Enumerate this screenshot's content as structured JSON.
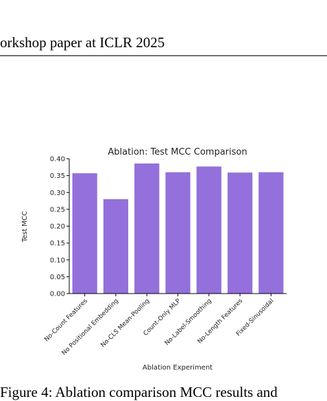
{
  "page": {
    "header": "orkshop paper at ICLR 2025",
    "caption": "Figure 4: Ablation comparison MCC results and"
  },
  "colors": {
    "bar": "#9370DB",
    "axis": "#000000",
    "text": "#222222"
  },
  "chart_data": {
    "type": "bar",
    "title": "Ablation: Test MCC Comparison",
    "xlabel": "Ablation Experiment",
    "ylabel": "Test MCC",
    "categories": [
      "No-Count Features",
      "No Positional Embedding",
      "No-CLS Mean-Pooling",
      "Count-Only MLP",
      "No-Label-Smoothing",
      "No-Length Features",
      "Fixed-Sinusoidal"
    ],
    "values": [
      0.357,
      0.28,
      0.386,
      0.36,
      0.377,
      0.359,
      0.36
    ],
    "yticks": [
      "0.00",
      "0.05",
      "0.10",
      "0.15",
      "0.20",
      "0.25",
      "0.30",
      "0.35",
      "0.40"
    ],
    "ylim": [
      0,
      0.4
    ],
    "grid": false,
    "legend": "none"
  }
}
